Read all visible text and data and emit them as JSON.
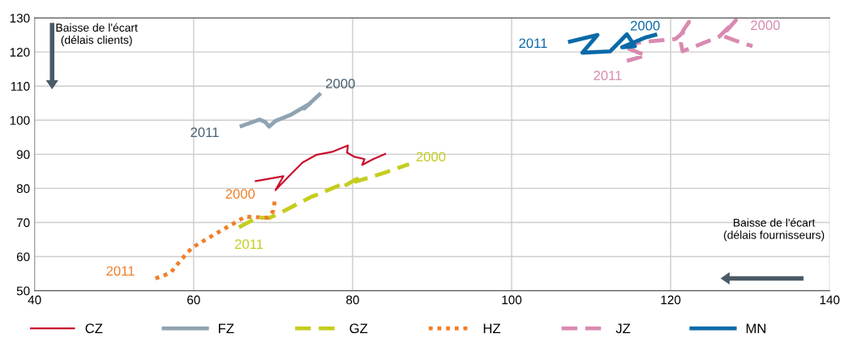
{
  "chart_data": {
    "type": "line",
    "xlim": [
      40,
      140
    ],
    "xticks": [
      40,
      60,
      80,
      100,
      120,
      140
    ],
    "ylim": [
      50,
      130
    ],
    "yticks": [
      50,
      60,
      70,
      80,
      90,
      100,
      110,
      120,
      130
    ],
    "grid": true,
    "legend": "bottom",
    "marker": "none",
    "series": [
      {
        "name": "CZ",
        "color": "#c8102e",
        "line_style": "solid",
        "x": [
          67.7,
          71.3,
          70.3,
          72.0,
          73.7,
          75.4,
          77.4,
          79.4,
          79.3,
          80.2,
          81.5,
          81.2,
          82.6,
          84.2
        ],
        "values": [
          82.1,
          83.6,
          79.5,
          83.6,
          87.6,
          89.8,
          90.7,
          92.6,
          90.5,
          89.3,
          88.6,
          86.9,
          88.6,
          90.2
        ]
      },
      {
        "name": "FZ",
        "color": "#8fa3b1",
        "line_style": "solid",
        "x": [
          65.8,
          68.3,
          69.0,
          69.5,
          70.3,
          72.3,
          73.7,
          74.7,
          73.9,
          76.0
        ],
        "values": [
          98.1,
          100.2,
          99.5,
          98.1,
          99.8,
          101.7,
          103.6,
          105.0,
          103.4,
          107.9
        ]
      },
      {
        "name": "GZ",
        "color": "#c5cd1e",
        "line_style": "dashed",
        "x": [
          65.7,
          68.0,
          69.6,
          71.3,
          74.7,
          79.2,
          79.2,
          80.2,
          81.2,
          80.4,
          83.9,
          87.1
        ],
        "values": [
          68.6,
          71.4,
          71.4,
          73.3,
          77.4,
          81.7,
          81.0,
          82.4,
          83.3,
          82.0,
          84.5,
          87.1
        ]
      },
      {
        "name": "HZ",
        "color": "#f07f2a",
        "line_style": "dotted",
        "x": [
          55.2,
          56.3,
          57.2,
          58.4,
          59.8,
          62.4,
          64.5,
          66.5,
          69.3,
          70.0,
          70.2
        ],
        "values": [
          53.6,
          54.5,
          55.5,
          59.0,
          62.6,
          66.2,
          69.0,
          71.7,
          71.4,
          73.3,
          76.2
        ]
      },
      {
        "name": "JZ",
        "color": "#d98ab0",
        "line_style": "dashed",
        "x": [
          114.5,
          116.9,
          115.2,
          114.0,
          116.3,
          120.6,
          121.3,
          122.3,
          121.6,
          121.3,
          121.5,
          126.1,
          128.2,
          126.5,
          128.2,
          130.3
        ],
        "values": [
          117.4,
          119.0,
          120.5,
          121.7,
          122.9,
          123.8,
          125.2,
          128.8,
          126.4,
          122.6,
          120.2,
          124.5,
          129.3,
          124.8,
          123.3,
          121.7
        ]
      },
      {
        "name": "MN",
        "color": "#0a6aa8",
        "line_style": "solid",
        "x": [
          107.1,
          110.8,
          108.9,
          112.4,
          114.5,
          115.5,
          113.9,
          116.9,
          118.3
        ],
        "values": [
          122.9,
          125.0,
          119.8,
          120.2,
          125.2,
          121.7,
          121.4,
          124.3,
          125.2
        ]
      }
    ],
    "annotations": [
      {
        "text": "2000",
        "x": 76.0,
        "y": 107.9
      },
      {
        "text": "2011",
        "x": 65.8,
        "y": 98.1
      },
      {
        "text": "2000",
        "x": 87.1,
        "y": 87.1
      },
      {
        "text": "2011",
        "x": 65.7,
        "y": 68.6
      },
      {
        "text": "2000",
        "x": 70.2,
        "y": 76.2
      },
      {
        "text": "2011",
        "x": 55.2,
        "y": 53.6
      },
      {
        "text": "2000",
        "x": 130.3,
        "y": 121.7
      },
      {
        "text": "2011",
        "x": 114.5,
        "y": 117.4
      },
      {
        "text": "2000",
        "x": 118.3,
        "y": 125.2
      },
      {
        "text": "2011",
        "x": 107.1,
        "y": 122.9
      },
      "Baisse de l'écart\n(délais clients)",
      "Baisse de l'écart\n(délais fournisseurs)"
    ]
  }
}
